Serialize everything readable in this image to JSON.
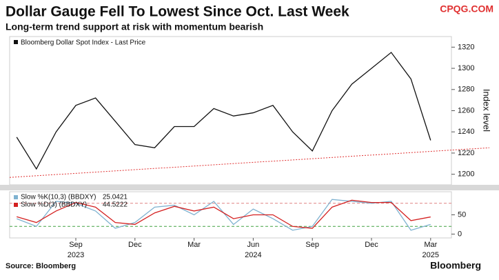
{
  "chart_data": [
    {
      "type": "line",
      "title": "Dollar Gauge Fell To Lowest Since Oct. Last Week",
      "subtitle": "Long-term trend support at risk with momentum bearish",
      "watermark": "CPQG.COM",
      "y_label": "Index level",
      "x": [
        "2023-06",
        "2023-07",
        "2023-08",
        "2023-09",
        "2023-10",
        "2023-11",
        "2023-12",
        "2024-01",
        "2024-02",
        "2024-03",
        "2024-04",
        "2024-05",
        "2024-06",
        "2024-07",
        "2024-08",
        "2024-09",
        "2024-10",
        "2024-11",
        "2024-12",
        "2025-01",
        "2025-02",
        "2025-03"
      ],
      "series": [
        {
          "name": "Bloomberg Dollar Spot Index - Last Price",
          "color": "#111111",
          "values": [
            1235,
            1205,
            1240,
            1265,
            1272,
            1250,
            1228,
            1225,
            1245,
            1245,
            1262,
            1255,
            1258,
            1265,
            1240,
            1222,
            1260,
            1285,
            1300,
            1315,
            1290,
            1232
          ]
        }
      ],
      "trend": {
        "values": [
          1197,
          1225
        ],
        "color": "#e03030"
      },
      "ylim": [
        1190,
        1330
      ],
      "yticks": [
        1200,
        1220,
        1240,
        1260,
        1280,
        1300,
        1320
      ],
      "xticks": [
        {
          "value": "2023-09",
          "label": "Sep"
        },
        {
          "value": "2023-12",
          "label": "Dec"
        },
        {
          "value": "2024-03",
          "label": "Mar"
        },
        {
          "value": "2024-06",
          "label": "Jun"
        },
        {
          "value": "2024-09",
          "label": "Sep"
        },
        {
          "value": "2024-12",
          "label": "Dec"
        },
        {
          "value": "2025-03",
          "label": "Mar"
        }
      ],
      "years": [
        {
          "value": "2023-09",
          "label": "2023"
        },
        {
          "value": "2024-06",
          "label": "2024"
        },
        {
          "value": "2025-03",
          "label": "2025"
        }
      ],
      "source": "Source: Bloomberg",
      "brand": "Bloomberg"
    },
    {
      "type": "line",
      "series": [
        {
          "name": "Slow %K(10,3) (BBDXY)",
          "last": 25.0421,
          "color": "#7fb2d0",
          "values": [
            40,
            20,
            85,
            80,
            60,
            15,
            30,
            70,
            75,
            50,
            85,
            25,
            65,
            40,
            10,
            20,
            90,
            85,
            80,
            85,
            10,
            25.0421
          ]
        },
        {
          "name": "Slow %D(3) (BBDXY)",
          "last": 44.5222,
          "color": "#d42020",
          "values": [
            45,
            30,
            60,
            82,
            70,
            30,
            25,
            55,
            72,
            60,
            70,
            40,
            50,
            50,
            20,
            15,
            70,
            88,
            82,
            82,
            35,
            44.5222
          ]
        }
      ],
      "ylim": [
        -10,
        110
      ],
      "yticks": [
        0,
        50
      ],
      "levels": [
        {
          "value": 80,
          "color": "#e08080"
        },
        {
          "value": 20,
          "color": "#40a040"
        }
      ]
    }
  ]
}
